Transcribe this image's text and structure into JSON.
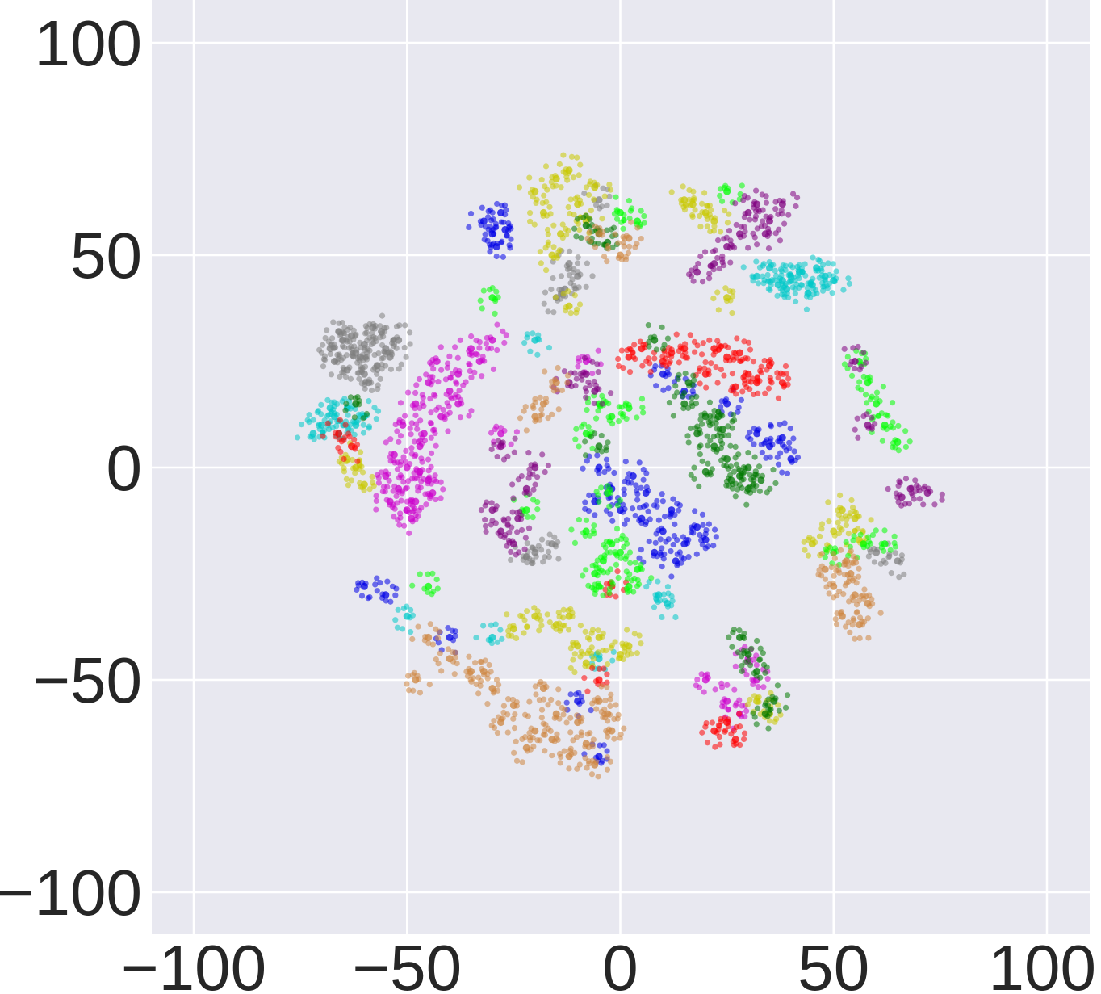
{
  "chart_data": {
    "type": "scatter",
    "title": "",
    "xlabel": "",
    "ylabel": "",
    "xlim": [
      -110,
      110
    ],
    "ylim": [
      -110,
      110
    ],
    "xticks": [
      -100,
      -50,
      0,
      50,
      100
    ],
    "yticks": [
      -100,
      -50,
      0,
      50,
      100
    ],
    "xtick_labels": [
      "−100",
      "−50",
      "0",
      "50",
      "100"
    ],
    "ytick_labels": [
      "−100",
      "−50",
      "0",
      "50",
      "100"
    ],
    "grid": true,
    "background": "#e8e8f0",
    "legend": "none",
    "series": [
      {
        "color": "#808080",
        "points": [
          [
            -65,
            30
          ],
          [
            -62,
            27
          ],
          [
            -58,
            33
          ],
          [
            -67,
            25
          ],
          [
            -55,
            28
          ],
          [
            -60,
            22
          ],
          [
            -63,
            31
          ],
          [
            -57,
            24
          ],
          [
            -52,
            30
          ],
          [
            -68,
            28
          ],
          [
            -60,
            29
          ],
          [
            -64,
            23
          ],
          [
            -56,
            32
          ],
          [
            -61,
            26
          ],
          [
            -59,
            20
          ],
          [
            -54,
            26
          ],
          [
            -66,
            32
          ],
          [
            -5,
            63
          ],
          [
            -10,
            45
          ],
          [
            -15,
            40
          ],
          [
            -13,
            42
          ],
          [
            -20,
            -20
          ],
          [
            -16,
            -18
          ],
          [
            -22,
            -21
          ],
          [
            60,
            -20
          ],
          [
            65,
            -22
          ],
          [
            -12,
            48
          ]
        ]
      },
      {
        "color": "#cc00cc",
        "points": [
          [
            -52,
            -5
          ],
          [
            -48,
            -8
          ],
          [
            -50,
            0
          ],
          [
            -45,
            -3
          ],
          [
            -53,
            3
          ],
          [
            -47,
            5
          ],
          [
            -50,
            -10
          ],
          [
            -44,
            -6
          ],
          [
            -55,
            -2
          ],
          [
            -49,
            -12
          ],
          [
            -46,
            8
          ],
          [
            -51,
            10
          ],
          [
            -42,
            12
          ],
          [
            -40,
            18
          ],
          [
            -38,
            22
          ],
          [
            -45,
            20
          ],
          [
            -35,
            28
          ],
          [
            -30,
            30
          ],
          [
            -33,
            25
          ],
          [
            -48,
            15
          ],
          [
            -43,
            25
          ],
          [
            -38,
            15
          ],
          [
            -54,
            -8
          ],
          [
            -47,
            -1
          ],
          [
            -28,
            8
          ],
          [
            30,
            -45
          ],
          [
            25,
            -55
          ],
          [
            20,
            -50
          ],
          [
            28,
            -58
          ],
          [
            32,
            -50
          ],
          [
            -8,
            25
          ]
        ]
      },
      {
        "color": "#00c8c8",
        "points": [
          [
            -70,
            10
          ],
          [
            -67,
            12
          ],
          [
            -64,
            14
          ],
          [
            -72,
            8
          ],
          [
            -62,
            10
          ],
          [
            -68,
            14
          ],
          [
            -66,
            8
          ],
          [
            -60,
            12
          ],
          [
            -20,
            30
          ],
          [
            40,
            45
          ],
          [
            45,
            43
          ],
          [
            42,
            46
          ],
          [
            38,
            44
          ],
          [
            48,
            45
          ],
          [
            35,
            47
          ],
          [
            44,
            41
          ],
          [
            39,
            42
          ],
          [
            50,
            44
          ],
          [
            46,
            47
          ],
          [
            32,
            45
          ],
          [
            37,
            43
          ],
          [
            11,
            -32
          ],
          [
            9,
            -30
          ],
          [
            -5,
            -45
          ],
          [
            -50,
            -35
          ],
          [
            -30,
            -40
          ]
        ]
      },
      {
        "color": "#c8c800",
        "points": [
          [
            -15,
            68
          ],
          [
            -10,
            62
          ],
          [
            -18,
            60
          ],
          [
            -12,
            70
          ],
          [
            -8,
            58
          ],
          [
            -14,
            55
          ],
          [
            -20,
            65
          ],
          [
            -6,
            66
          ],
          [
            -16,
            50
          ],
          [
            -12,
            38
          ],
          [
            17,
            62
          ],
          [
            20,
            60
          ],
          [
            15,
            63
          ],
          [
            22,
            58
          ],
          [
            -62,
            0
          ],
          [
            -60,
            -4
          ],
          [
            -64,
            2
          ],
          [
            -20,
            -35
          ],
          [
            -15,
            -37
          ],
          [
            -10,
            -42
          ],
          [
            -5,
            -40
          ],
          [
            0,
            -44
          ],
          [
            -25,
            -38
          ],
          [
            -12,
            -35
          ],
          [
            -8,
            -46
          ],
          [
            2,
            -42
          ],
          [
            55,
            -12
          ],
          [
            50,
            -15
          ],
          [
            52,
            -10
          ],
          [
            45,
            -18
          ],
          [
            56,
            -17
          ],
          [
            35,
            -58
          ],
          [
            32,
            -55
          ],
          [
            25,
            40
          ]
        ]
      },
      {
        "color": "#0000e6",
        "points": [
          [
            -30,
            55
          ],
          [
            -28,
            60
          ],
          [
            -32,
            58
          ],
          [
            -29,
            52
          ],
          [
            -27,
            56
          ],
          [
            -5,
            0
          ],
          [
            -2,
            -5
          ],
          [
            0,
            -10
          ],
          [
            5,
            -12
          ],
          [
            10,
            -15
          ],
          [
            15,
            -18
          ],
          [
            12,
            -10
          ],
          [
            3,
            -2
          ],
          [
            -6,
            -8
          ],
          [
            8,
            -20
          ],
          [
            18,
            -14
          ],
          [
            6,
            -6
          ],
          [
            13,
            -22
          ],
          [
            20,
            -17
          ],
          [
            35,
            5
          ],
          [
            40,
            2
          ],
          [
            38,
            7
          ],
          [
            32,
            8
          ],
          [
            -40,
            -40
          ],
          [
            -55,
            -30
          ],
          [
            -60,
            -28
          ],
          [
            10,
            22
          ],
          [
            15,
            18
          ],
          [
            25,
            15
          ],
          [
            -10,
            -55
          ],
          [
            -5,
            -68
          ]
        ]
      },
      {
        "color": "#ff0000",
        "points": [
          [
            5,
            28
          ],
          [
            10,
            25
          ],
          [
            15,
            28
          ],
          [
            20,
            22
          ],
          [
            25,
            26
          ],
          [
            30,
            22
          ],
          [
            35,
            24
          ],
          [
            38,
            20
          ],
          [
            28,
            27
          ],
          [
            32,
            20
          ],
          [
            22,
            28
          ],
          [
            27,
            19
          ],
          [
            12,
            27
          ],
          [
            -63,
            5
          ],
          [
            -66,
            8
          ],
          [
            25,
            -60
          ],
          [
            22,
            -62
          ],
          [
            27,
            -64
          ],
          [
            -2,
            -28
          ],
          [
            2,
            26
          ],
          [
            -5,
            -50
          ]
        ]
      },
      {
        "color": "#00ff00",
        "points": [
          [
            -5,
            15
          ],
          [
            -2,
            12
          ],
          [
            2,
            14
          ],
          [
            -8,
            8
          ],
          [
            0,
            -20
          ],
          [
            -4,
            -22
          ],
          [
            -6,
            -25
          ],
          [
            2,
            -28
          ],
          [
            -2,
            -18
          ],
          [
            4,
            -24
          ],
          [
            -8,
            -15
          ],
          [
            -5,
            -28
          ],
          [
            -3,
            -6
          ],
          [
            4,
            58
          ],
          [
            0,
            60
          ],
          [
            60,
            15
          ],
          [
            62,
            10
          ],
          [
            65,
            6
          ],
          [
            58,
            20
          ],
          [
            56,
            25
          ],
          [
            -22,
            -10
          ],
          [
            50,
            -20
          ],
          [
            57,
            -18
          ],
          [
            62,
            -18
          ],
          [
            25,
            65
          ],
          [
            -30,
            40
          ],
          [
            -45,
            -28
          ]
        ]
      },
      {
        "color": "#007800",
        "points": [
          [
            15,
            15
          ],
          [
            20,
            12
          ],
          [
            18,
            8
          ],
          [
            22,
            5
          ],
          [
            25,
            2
          ],
          [
            28,
            -2
          ],
          [
            30,
            -5
          ],
          [
            26,
            -3
          ],
          [
            23,
            12
          ],
          [
            20,
            -1
          ],
          [
            30,
            0
          ],
          [
            33,
            -3
          ],
          [
            16,
            20
          ],
          [
            24,
            9
          ],
          [
            -5,
            55
          ],
          [
            -8,
            57
          ],
          [
            -3,
            53
          ],
          [
            36,
            -55
          ],
          [
            34,
            -58
          ],
          [
            32,
            -48
          ],
          [
            30,
            -44
          ],
          [
            28,
            -40
          ],
          [
            -5,
            5
          ],
          [
            8,
            30
          ],
          [
            -62,
            15
          ]
        ]
      },
      {
        "color": "#800080",
        "points": [
          [
            30,
            60
          ],
          [
            35,
            58
          ],
          [
            28,
            55
          ],
          [
            32,
            62
          ],
          [
            38,
            62
          ],
          [
            25,
            52
          ],
          [
            22,
            48
          ],
          [
            18,
            46
          ],
          [
            34,
            55
          ],
          [
            -28,
            -15
          ],
          [
            -25,
            -18
          ],
          [
            -30,
            -10
          ],
          [
            -22,
            -5
          ],
          [
            -20,
            0
          ],
          [
            -24,
            -12
          ],
          [
            -12,
            20
          ],
          [
            -8,
            22
          ],
          [
            -6,
            18
          ],
          [
            68,
            -5
          ],
          [
            66,
            -7
          ],
          [
            72,
            -6
          ],
          [
            58,
            10
          ],
          [
            55,
            25
          ],
          [
            -28,
            5
          ]
        ]
      },
      {
        "color": "#cd853f",
        "points": [
          [
            -5,
            -55
          ],
          [
            -10,
            -60
          ],
          [
            -15,
            -58
          ],
          [
            -20,
            -62
          ],
          [
            -25,
            -56
          ],
          [
            -8,
            -65
          ],
          [
            -2,
            -62
          ],
          [
            -12,
            -68
          ],
          [
            -30,
            -52
          ],
          [
            -35,
            -48
          ],
          [
            -18,
            -52
          ],
          [
            -22,
            -66
          ],
          [
            -3,
            -58
          ],
          [
            -28,
            -60
          ],
          [
            -40,
            -45
          ],
          [
            -45,
            -40
          ],
          [
            -6,
            -70
          ],
          [
            -16,
            -64
          ],
          [
            55,
            -30
          ],
          [
            52,
            -35
          ],
          [
            58,
            -32
          ],
          [
            54,
            -25
          ],
          [
            50,
            -28
          ],
          [
            56,
            -37
          ],
          [
            53,
            -22
          ],
          [
            48,
            -24
          ],
          [
            -5,
            55
          ],
          [
            0,
            50
          ],
          [
            2,
            54
          ],
          [
            -18,
            15
          ],
          [
            -20,
            12
          ],
          [
            -15,
            20
          ],
          [
            -48,
            -50
          ],
          [
            -32,
            -48
          ]
        ]
      }
    ]
  }
}
